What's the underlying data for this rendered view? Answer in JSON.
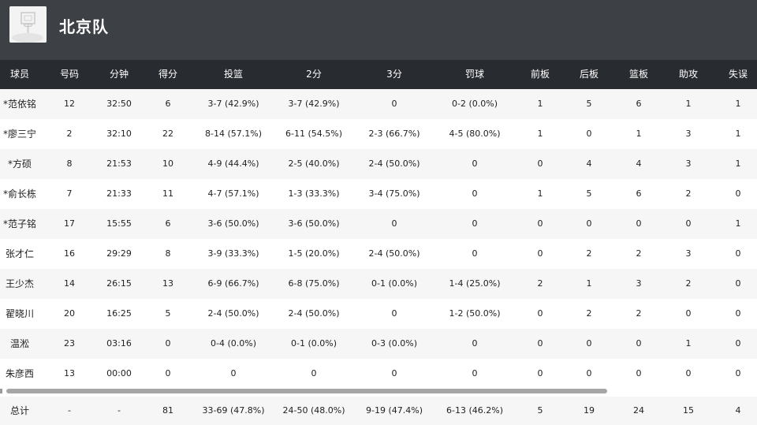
{
  "team": {
    "name": "北京队",
    "logo_icon": "team-logo-icon"
  },
  "columns": [
    {
      "key": "player",
      "label": "球员"
    },
    {
      "key": "number",
      "label": "号码"
    },
    {
      "key": "minutes",
      "label": "分钟"
    },
    {
      "key": "points",
      "label": "得分"
    },
    {
      "key": "fg",
      "label": "投篮"
    },
    {
      "key": "two",
      "label": "2分"
    },
    {
      "key": "three",
      "label": "3分"
    },
    {
      "key": "ft",
      "label": "罚球"
    },
    {
      "key": "oreb",
      "label": "前板"
    },
    {
      "key": "dreb",
      "label": "后板"
    },
    {
      "key": "reb",
      "label": "篮板"
    },
    {
      "key": "ast",
      "label": "助攻"
    },
    {
      "key": "tov",
      "label": "失误"
    }
  ],
  "players": [
    {
      "player": "*范依铭",
      "number": "12",
      "minutes": "32:50",
      "points": "6",
      "fg": "3-7 (42.9%)",
      "two": "3-7 (42.9%)",
      "three": "0",
      "ft": "0-2 (0.0%)",
      "oreb": "1",
      "dreb": "5",
      "reb": "6",
      "ast": "1",
      "tov": "1"
    },
    {
      "player": "*廖三宁",
      "number": "2",
      "minutes": "32:10",
      "points": "22",
      "fg": "8-14 (57.1%)",
      "two": "6-11 (54.5%)",
      "three": "2-3 (66.7%)",
      "ft": "4-5 (80.0%)",
      "oreb": "1",
      "dreb": "0",
      "reb": "1",
      "ast": "3",
      "tov": "1"
    },
    {
      "player": "*方硕",
      "number": "8",
      "minutes": "21:53",
      "points": "10",
      "fg": "4-9 (44.4%)",
      "two": "2-5 (40.0%)",
      "three": "2-4 (50.0%)",
      "ft": "0",
      "oreb": "0",
      "dreb": "4",
      "reb": "4",
      "ast": "3",
      "tov": "1"
    },
    {
      "player": "*俞长栋",
      "number": "7",
      "minutes": "21:33",
      "points": "11",
      "fg": "4-7 (57.1%)",
      "two": "1-3 (33.3%)",
      "three": "3-4 (75.0%)",
      "ft": "0",
      "oreb": "1",
      "dreb": "5",
      "reb": "6",
      "ast": "2",
      "tov": "0"
    },
    {
      "player": "*范子铭",
      "number": "17",
      "minutes": "15:55",
      "points": "6",
      "fg": "3-6 (50.0%)",
      "two": "3-6 (50.0%)",
      "three": "0",
      "ft": "0",
      "oreb": "0",
      "dreb": "0",
      "reb": "0",
      "ast": "0",
      "tov": "1"
    },
    {
      "player": "张才仁",
      "number": "16",
      "minutes": "29:29",
      "points": "8",
      "fg": "3-9 (33.3%)",
      "two": "1-5 (20.0%)",
      "three": "2-4 (50.0%)",
      "ft": "0",
      "oreb": "0",
      "dreb": "2",
      "reb": "2",
      "ast": "3",
      "tov": "0"
    },
    {
      "player": "王少杰",
      "number": "14",
      "minutes": "26:15",
      "points": "13",
      "fg": "6-9 (66.7%)",
      "two": "6-8 (75.0%)",
      "three": "0-1 (0.0%)",
      "ft": "1-4 (25.0%)",
      "oreb": "2",
      "dreb": "1",
      "reb": "3",
      "ast": "2",
      "tov": "0"
    },
    {
      "player": "翟晓川",
      "number": "20",
      "minutes": "16:25",
      "points": "5",
      "fg": "2-4 (50.0%)",
      "two": "2-4 (50.0%)",
      "three": "0",
      "ft": "1-2 (50.0%)",
      "oreb": "0",
      "dreb": "2",
      "reb": "2",
      "ast": "0",
      "tov": "0"
    },
    {
      "player": "温淞",
      "number": "23",
      "minutes": "03:16",
      "points": "0",
      "fg": "0-4 (0.0%)",
      "two": "0-1 (0.0%)",
      "three": "0-3 (0.0%)",
      "ft": "0",
      "oreb": "0",
      "dreb": "0",
      "reb": "0",
      "ast": "1",
      "tov": "0"
    },
    {
      "player": "朱彦西",
      "number": "13",
      "minutes": "00:00",
      "points": "0",
      "fg": "0",
      "two": "0",
      "three": "0",
      "ft": "0",
      "oreb": "0",
      "dreb": "0",
      "reb": "0",
      "ast": "0",
      "tov": "0"
    }
  ],
  "totals": {
    "player": "总计",
    "number": "-",
    "minutes": "-",
    "points": "81",
    "fg": "33-69 (47.8%)",
    "two": "24-50 (48.0%)",
    "three": "9-19 (47.4%)",
    "ft": "6-13 (46.2%)",
    "oreb": "5",
    "dreb": "19",
    "reb": "24",
    "ast": "15",
    "tov": "4"
  }
}
